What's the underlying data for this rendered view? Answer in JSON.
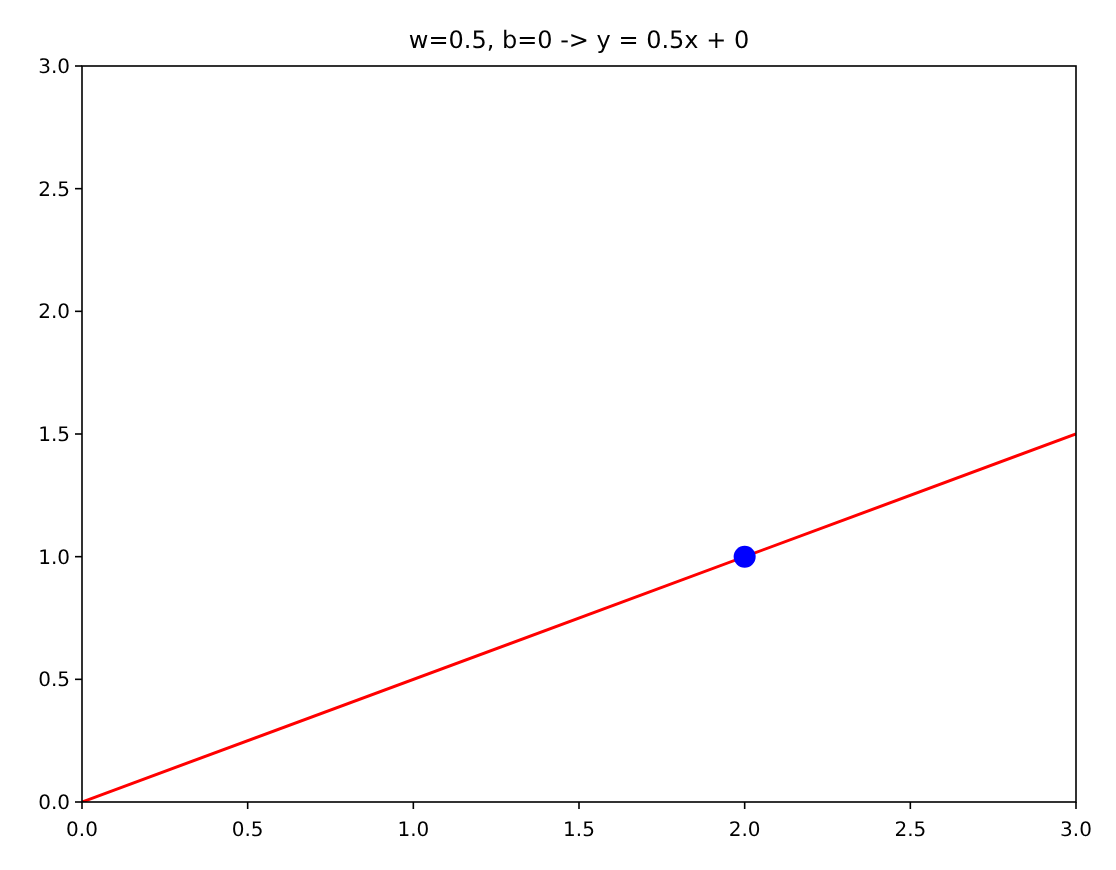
{
  "chart_data": {
    "type": "line",
    "title": "w=0.5, b=0 -> y = 0.5x + 0",
    "series": [
      {
        "color": "#ff0000",
        "x": [
          0,
          3
        ],
        "values": [
          0,
          1.5
        ],
        "marker": "none"
      },
      {
        "type": "scatter",
        "color": "#0000ff",
        "x": [
          2
        ],
        "values": [
          1
        ],
        "marker": "circle"
      }
    ],
    "xlim": [
      0,
      3
    ],
    "ylim": [
      0,
      3
    ],
    "xticks": [
      {
        "value": 0,
        "label": "0.0"
      },
      {
        "value": 0.5,
        "label": "0.5"
      },
      {
        "value": 1,
        "label": "1.0"
      },
      {
        "value": 1.5,
        "label": "1.5"
      },
      {
        "value": 2,
        "label": "2.0"
      },
      {
        "value": 2.5,
        "label": "2.5"
      },
      {
        "value": 3,
        "label": "3.0"
      }
    ],
    "yticks": [
      {
        "value": 0,
        "label": "0.0"
      },
      {
        "value": 0.5,
        "label": "0.5"
      },
      {
        "value": 1,
        "label": "1.0"
      },
      {
        "value": 1.5,
        "label": "1.5"
      },
      {
        "value": 2,
        "label": "2.0"
      },
      {
        "value": 2.5,
        "label": "2.5"
      },
      {
        "value": 3,
        "label": "3.0"
      }
    ],
    "grid": false
  }
}
